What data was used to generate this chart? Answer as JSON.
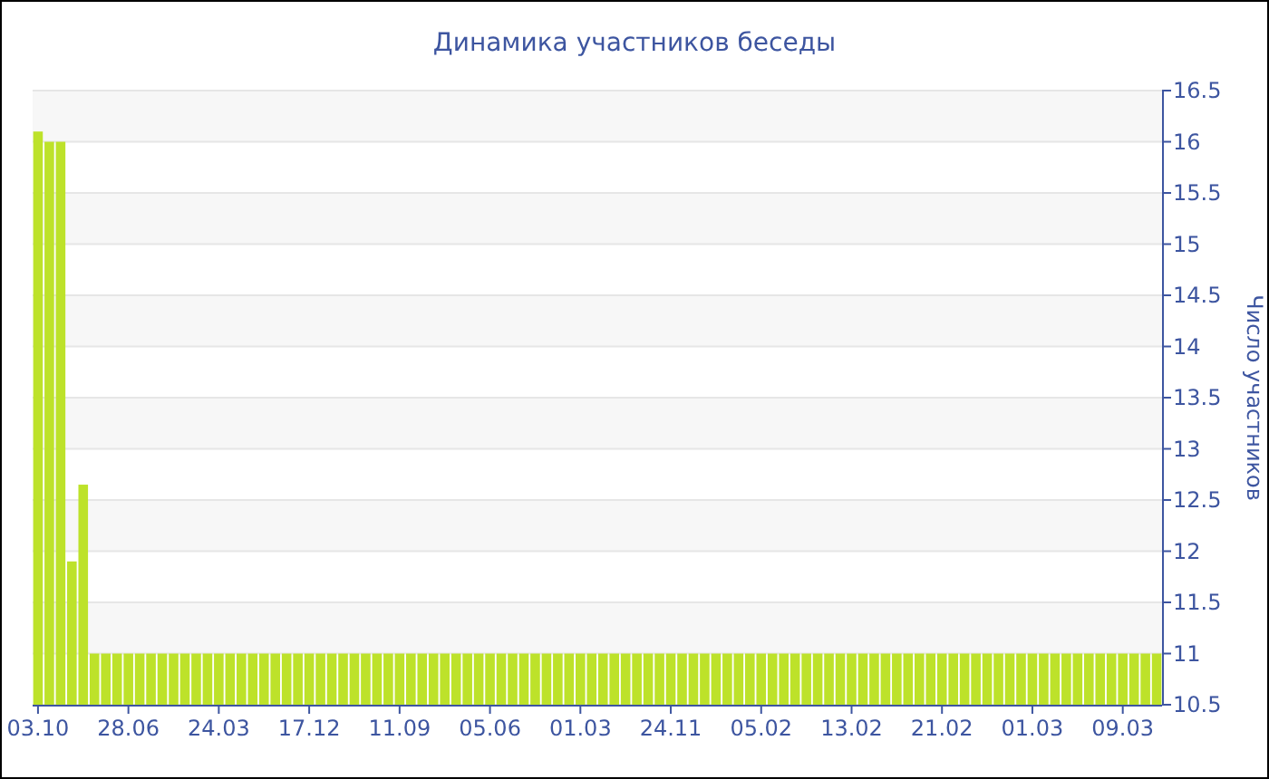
{
  "chart_data": {
    "type": "bar",
    "title": "Динамика участников беседы",
    "ylabel": "Число участников",
    "categories": [
      "03.10",
      null,
      null,
      null,
      null,
      null,
      null,
      null,
      "28.06",
      null,
      null,
      null,
      null,
      null,
      null,
      null,
      "24.03",
      null,
      null,
      null,
      null,
      null,
      null,
      null,
      "17.12",
      null,
      null,
      null,
      null,
      null,
      null,
      null,
      "11.09",
      null,
      null,
      null,
      null,
      null,
      null,
      null,
      "05.06",
      null,
      null,
      null,
      null,
      null,
      null,
      null,
      "01.03",
      null,
      null,
      null,
      null,
      null,
      null,
      null,
      "24.11",
      null,
      null,
      null,
      null,
      null,
      null,
      null,
      "05.02",
      null,
      null,
      null,
      null,
      null,
      null,
      null,
      "13.02",
      null,
      null,
      null,
      null,
      null,
      null,
      null,
      "21.02",
      null,
      null,
      null,
      null,
      null,
      null,
      null,
      "01.03",
      null,
      null,
      null,
      null,
      null,
      null,
      null,
      "09.03",
      null,
      null,
      null
    ],
    "values": [
      16.1,
      16,
      16,
      11.9,
      12.65,
      11,
      11,
      11,
      11,
      11,
      11,
      11,
      11,
      11,
      11,
      11,
      11,
      11,
      11,
      11,
      11,
      11,
      11,
      11,
      11,
      11,
      11,
      11,
      11,
      11,
      11,
      11,
      11,
      11,
      11,
      11,
      11,
      11,
      11,
      11,
      11,
      11,
      11,
      11,
      11,
      11,
      11,
      11,
      11,
      11,
      11,
      11,
      11,
      11,
      11,
      11,
      11,
      11,
      11,
      11,
      11,
      11,
      11,
      11,
      11,
      11,
      11,
      11,
      11,
      11,
      11,
      11,
      11,
      11,
      11,
      11,
      11,
      11,
      11,
      11,
      11,
      11,
      11,
      11,
      11,
      11,
      11,
      11,
      11,
      11,
      11,
      11,
      11,
      11,
      11,
      11,
      11,
      11,
      11,
      11
    ],
    "color": "#bde22a",
    "ylim": [
      10.5,
      16.5
    ],
    "yticks": [
      10.5,
      11,
      11.5,
      12,
      12.5,
      13,
      13.5,
      14,
      14.5,
      15,
      15.5,
      16,
      16.5
    ],
    "grid": "y"
  }
}
